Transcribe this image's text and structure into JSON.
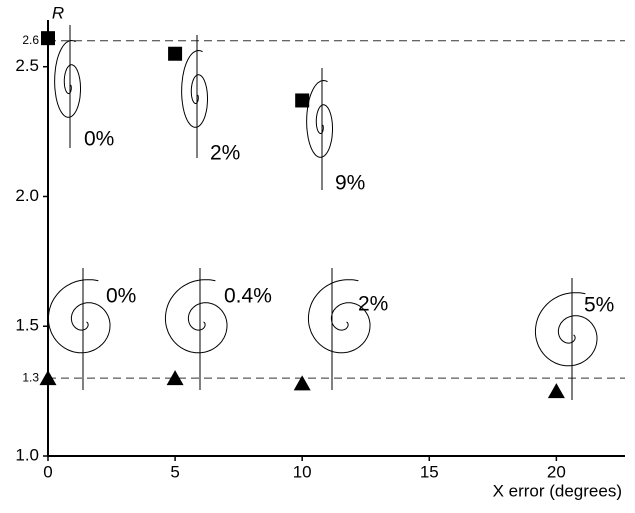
{
  "chart_data": {
    "type": "scatter",
    "y_label": "R",
    "x_label": "X error (degrees)",
    "xlim": [
      0,
      22.7
    ],
    "ylim": [
      1.0,
      2.68
    ],
    "xticks": [
      0,
      5,
      10,
      15,
      20
    ],
    "yticks": [
      {
        "value": 1.0,
        "label": "1.0"
      },
      {
        "value": 1.5,
        "label": "1.5"
      },
      {
        "value": 2.0,
        "label": "2.0"
      },
      {
        "value": 2.5,
        "label": "2.5"
      }
    ],
    "reference_lines": [
      {
        "value": 2.6,
        "label": "2.6"
      },
      {
        "value": 1.3,
        "label": "1.3"
      }
    ],
    "series": [
      {
        "marker": "square",
        "color": "#000000",
        "x": [
          0,
          5,
          10
        ],
        "values": [
          2.61,
          2.55,
          2.37
        ]
      },
      {
        "marker": "triangle",
        "color": "#000000",
        "x": [
          0,
          5,
          10,
          20
        ],
        "values": [
          1.3,
          1.3,
          1.28,
          1.25
        ]
      }
    ],
    "annotations": [
      "0%",
      "2%",
      "9%",
      "0%",
      "0.4%",
      "2%",
      "5%"
    ]
  }
}
